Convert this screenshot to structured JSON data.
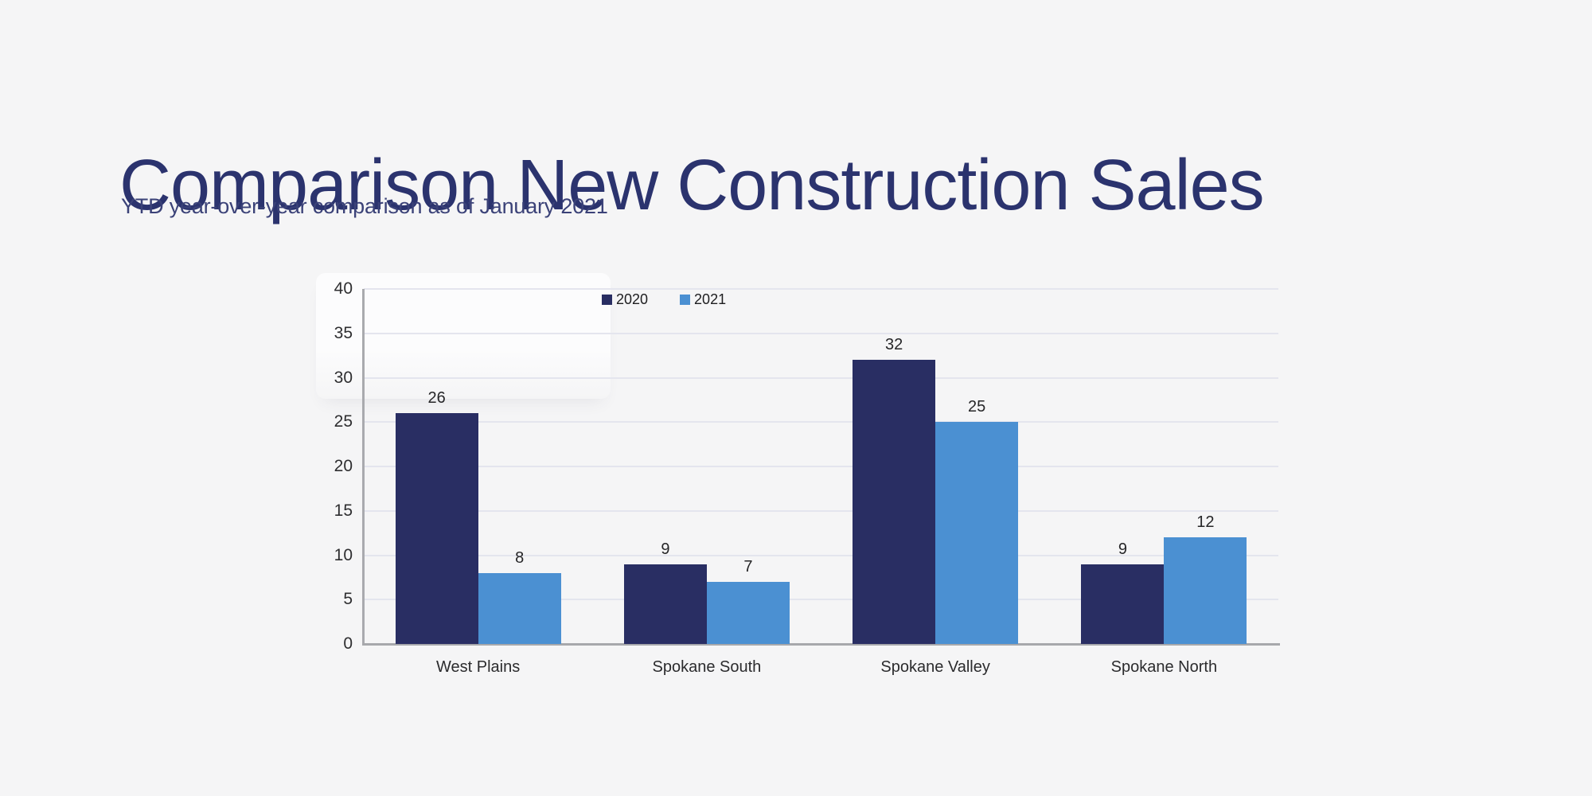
{
  "header": {
    "title": "Comparison New Construction Sales",
    "subtitle": "YTD year-over-year comparison as of January 2021"
  },
  "theme": {
    "background": "#f5f5f6",
    "title_color": "#2b336e",
    "subtitle_color": "#3b4278",
    "gridline_color": "#e4e5ee",
    "axis_line_color": "#a7a8ac"
  },
  "chart_data": {
    "type": "bar",
    "title": "",
    "xlabel": "",
    "ylabel": "",
    "categories": [
      "West Plains",
      "Spokane South",
      "Spokane Valley",
      "Spokane North"
    ],
    "series": [
      {
        "name": "2020",
        "color": "#292e63",
        "values": [
          26,
          9,
          32,
          9
        ]
      },
      {
        "name": "2021",
        "color": "#4b90d2",
        "values": [
          8,
          7,
          25,
          12
        ]
      }
    ],
    "ylim": [
      0,
      40
    ],
    "yticks": [
      0,
      5,
      10,
      15,
      20,
      25,
      30,
      35,
      40
    ],
    "grid": "horizontal",
    "legend_position": "top",
    "data_labels": true
  }
}
